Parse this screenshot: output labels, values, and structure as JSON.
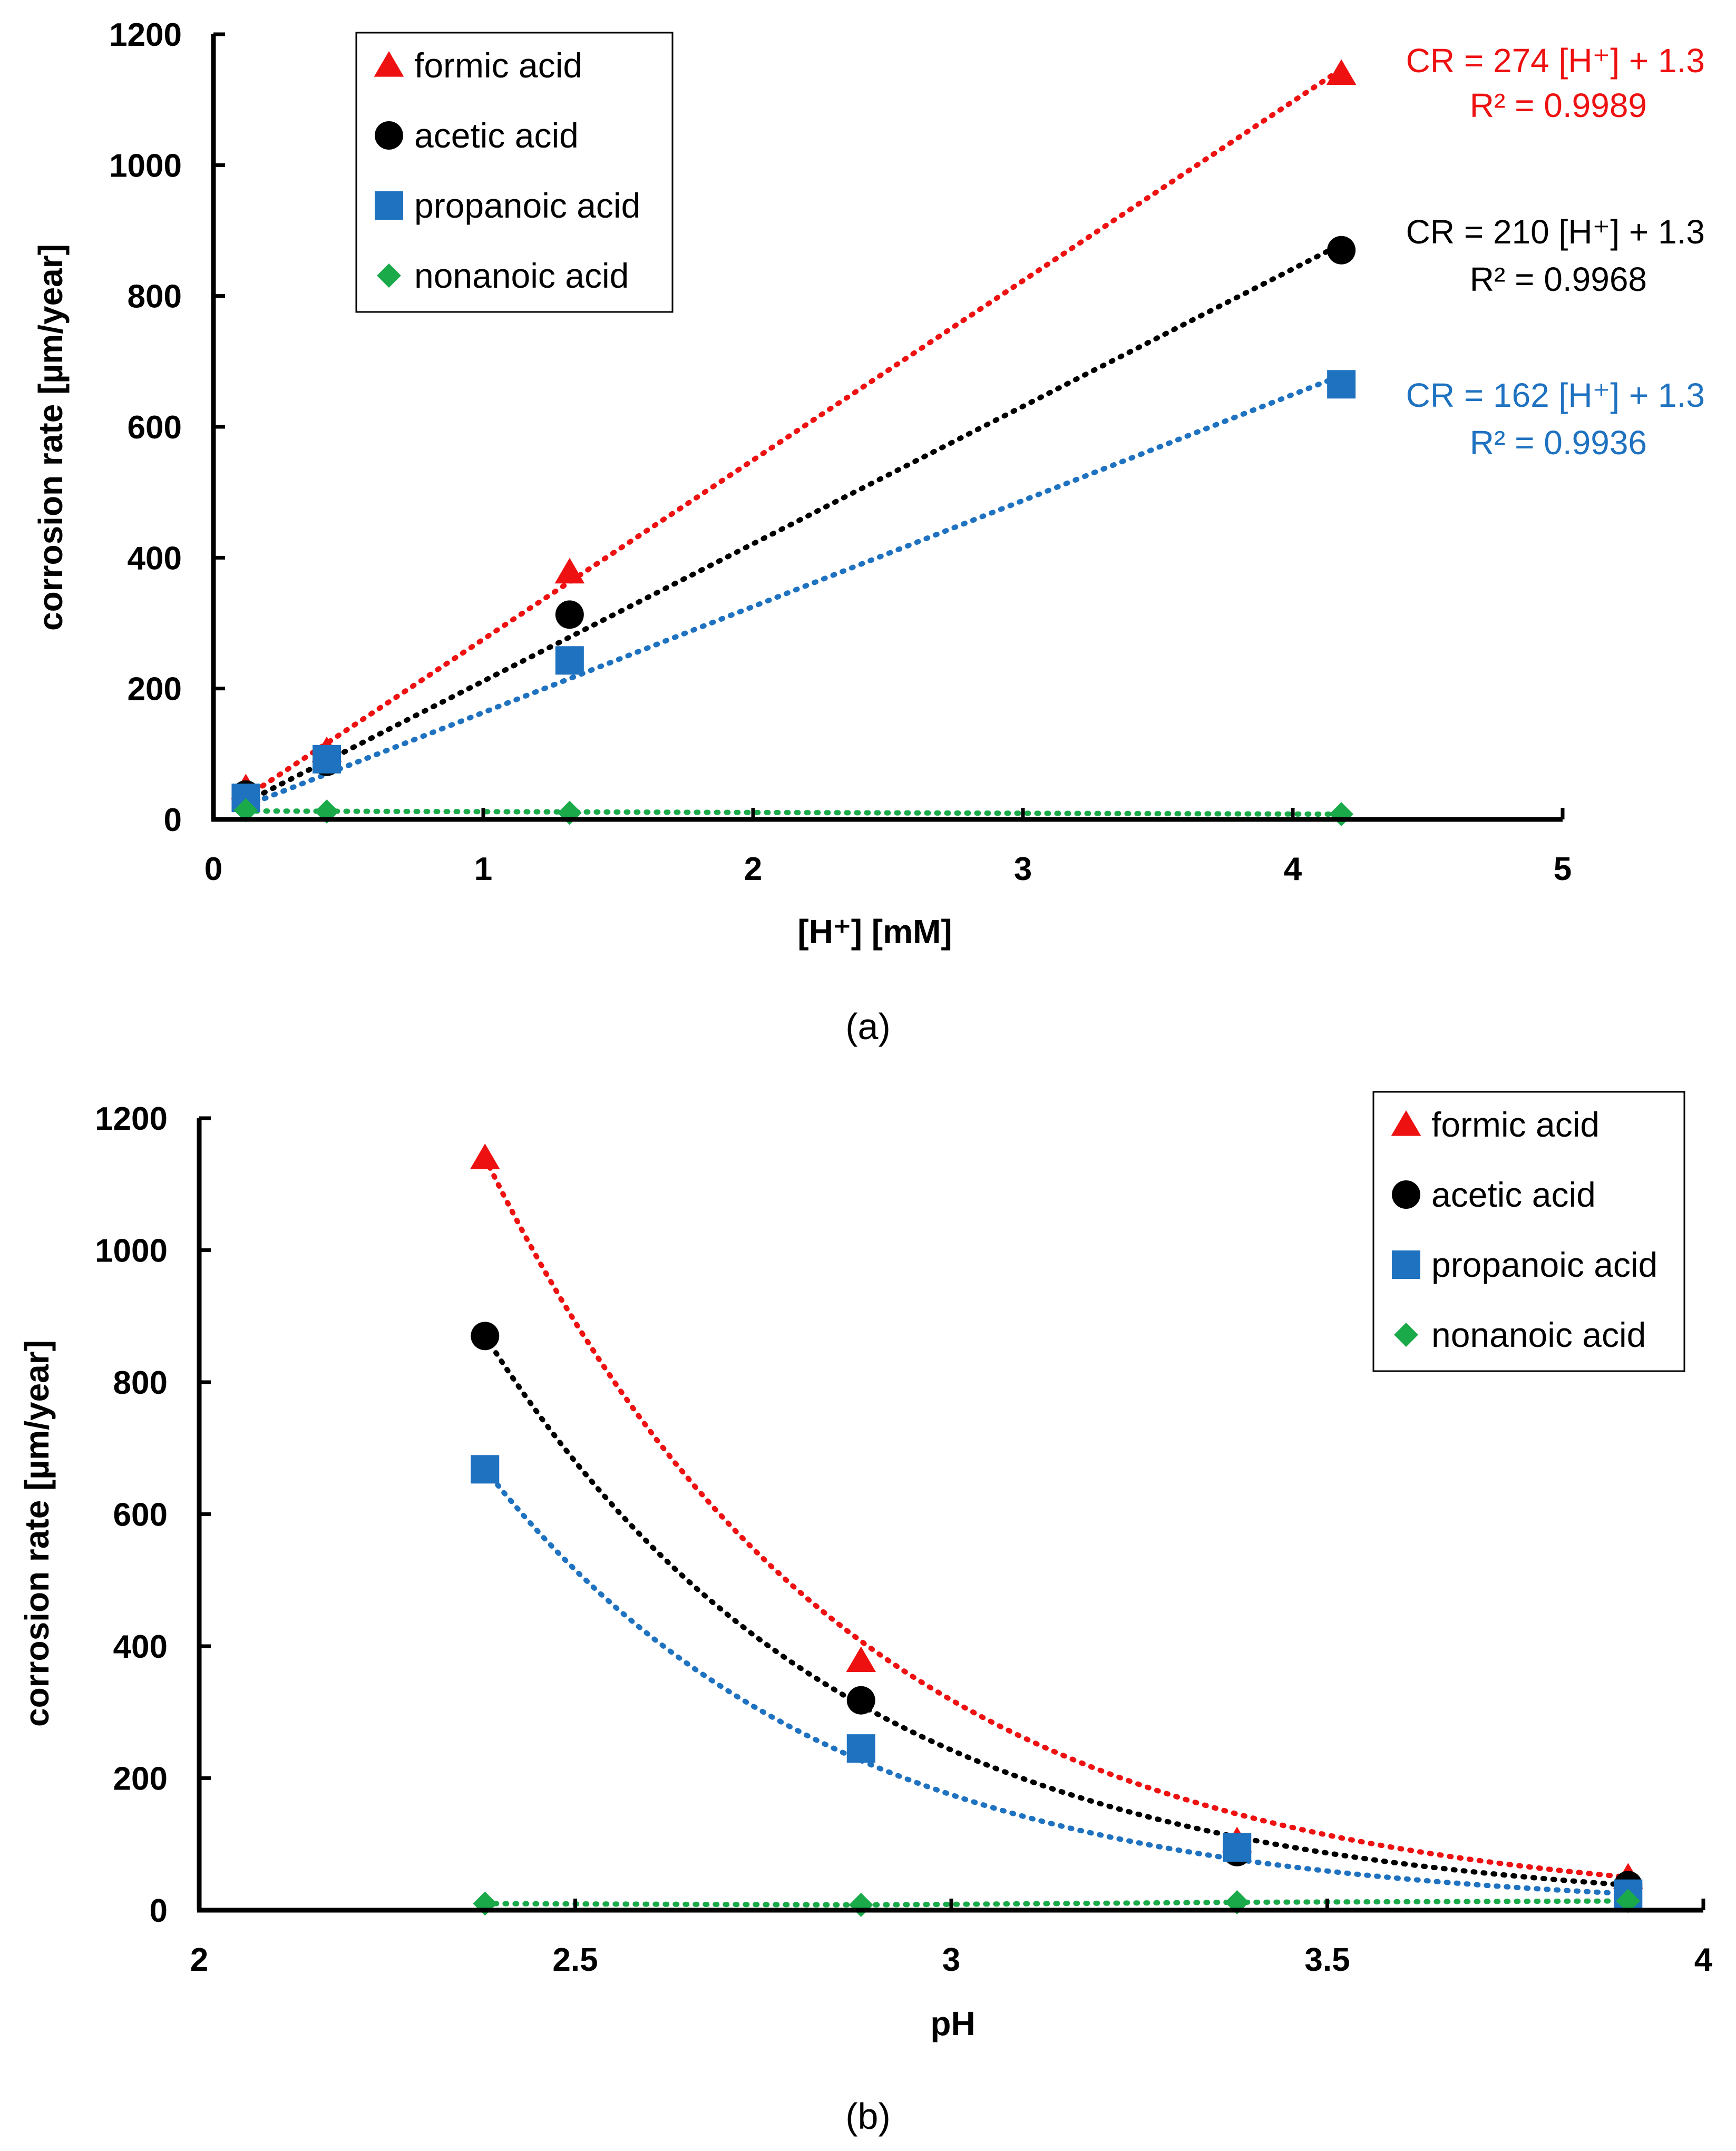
{
  "colors": {
    "formic": "#ee1111",
    "acetic": "#000000",
    "propanoic": "#1f72c0",
    "nonanoic": "#1aaa4a"
  },
  "chart_data": [
    {
      "type": "scatter",
      "caption": "(a)",
      "xlabel": "[H⁺] [mM]",
      "ylabel": "corrosion rate [µm/year]",
      "xlim": [
        0,
        5
      ],
      "ylim": [
        0,
        1200
      ],
      "xticks": [
        0,
        1,
        2,
        3,
        4,
        5
      ],
      "yticks": [
        0,
        200,
        400,
        600,
        800,
        1000,
        1200
      ],
      "legend_position": "top-left",
      "series": [
        {
          "name": "formic acid",
          "key": "formic",
          "marker": "triangle",
          "x": [
            0.12,
            0.42,
            1.32,
            4.18
          ],
          "y": [
            48,
            105,
            378,
            1140
          ],
          "trend": {
            "kind": "linear",
            "slope": 274,
            "intercept": 1.3,
            "x_range": [
              0.12,
              4.18
            ]
          }
        },
        {
          "name": "acetic acid",
          "key": "acetic",
          "marker": "circle",
          "x": [
            0.12,
            0.42,
            1.32,
            4.18
          ],
          "y": [
            38,
            88,
            313,
            870
          ],
          "trend": {
            "kind": "linear",
            "slope": 210,
            "intercept": 1.3,
            "x_range": [
              0.12,
              4.18
            ]
          }
        },
        {
          "name": "propanoic acid",
          "key": "propanoic",
          "marker": "square",
          "x": [
            0.12,
            0.42,
            1.32,
            4.18
          ],
          "y": [
            33,
            92,
            243,
            665
          ],
          "trend": {
            "kind": "linear",
            "slope": 162,
            "intercept": 1.3,
            "x_range": [
              0.12,
              4.18
            ]
          }
        },
        {
          "name": "nonanoic acid",
          "key": "nonanoic",
          "marker": "diamond",
          "x": [
            0.12,
            0.42,
            1.32,
            4.18
          ],
          "y": [
            14,
            12,
            10,
            8
          ],
          "trend": {
            "kind": "linear",
            "slope": -1.2,
            "intercept": 13,
            "x_range": [
              0.12,
              4.18
            ]
          }
        }
      ],
      "annotations": [
        {
          "key": "formic",
          "line1": "CR = 274 [H⁺] + 1.3",
          "line2": "R² = 0.9989"
        },
        {
          "key": "acetic",
          "line1": "CR = 210 [H⁺] + 1.3",
          "line2": "R² = 0.9968"
        },
        {
          "key": "propanoic",
          "line1": "CR = 162 [H⁺] + 1.3",
          "line2": "R² = 0.9936"
        }
      ]
    },
    {
      "type": "scatter",
      "caption": "(b)",
      "xlabel": "pH",
      "ylabel": "corrosion rate [µm/year]",
      "xlim": [
        2,
        4
      ],
      "ylim": [
        0,
        1200
      ],
      "xticks": [
        2,
        2.5,
        3,
        3.5,
        4
      ],
      "yticks": [
        0,
        200,
        400,
        600,
        800,
        1000,
        1200
      ],
      "legend_position": "top-right",
      "series": [
        {
          "name": "formic acid",
          "key": "formic",
          "marker": "triangle",
          "x": [
            2.38,
            2.88,
            3.38,
            3.9
          ],
          "y": [
            1140,
            378,
            105,
            50
          ],
          "trend": {
            "kind": "exponential",
            "a": 1140,
            "b": 0.99
          }
        },
        {
          "name": "acetic acid",
          "key": "acetic",
          "marker": "circle",
          "x": [
            2.38,
            2.88,
            3.38,
            3.9
          ],
          "y": [
            870,
            318,
            88,
            38
          ],
          "trend": {
            "kind": "exponential",
            "a": 870,
            "b": 0.99
          }
        },
        {
          "name": "propanoic acid",
          "key": "propanoic",
          "marker": "square",
          "x": [
            2.38,
            2.88,
            3.38,
            3.9
          ],
          "y": [
            668,
            245,
            95,
            25
          ],
          "trend": {
            "kind": "exponential",
            "a": 668,
            "b": 0.99
          }
        },
        {
          "name": "nonanoic acid",
          "key": "nonanoic",
          "marker": "diamond",
          "x": [
            2.38,
            2.88,
            3.38,
            3.9
          ],
          "y": [
            10,
            8,
            12,
            14
          ],
          "trend": {
            "kind": "linear_points"
          }
        }
      ]
    }
  ]
}
